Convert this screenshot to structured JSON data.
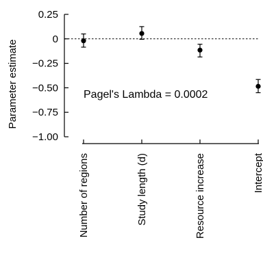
{
  "chart_data": {
    "type": "scatter",
    "title": "",
    "xlabel": "",
    "ylabel": "Parameter estimate",
    "ylim": [
      -1.0,
      0.25
    ],
    "yticks": [
      0.25,
      0,
      -0.25,
      -0.5,
      -0.75,
      -1.0
    ],
    "ytick_labels": [
      "0.25",
      "0",
      "−0.25",
      "−0.50",
      "−0.75",
      "−1.00"
    ],
    "categories": [
      "Number of regions",
      "Study length (d)",
      "Resource increase",
      "Intercept"
    ],
    "values": [
      -0.02,
      0.055,
      -0.115,
      -0.485
    ],
    "error_low": [
      -0.085,
      -0.005,
      -0.185,
      -0.55
    ],
    "error_high": [
      0.05,
      0.125,
      -0.055,
      -0.415
    ],
    "reference_line": 0,
    "annotation": "Pagel's Lambda = 0.0002",
    "grid": false
  }
}
